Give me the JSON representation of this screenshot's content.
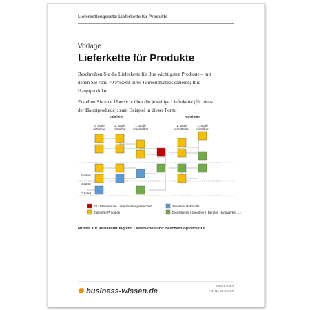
{
  "header": {
    "title": "Lieferkettengesetz: Lieferkette für Produkte"
  },
  "document": {
    "kicker": "Vorlage",
    "title": "Lieferkette für Produkte",
    "paragraphs": [
      "Beschreiben Sie die Lieferkette für Ihre wichtigsten Produkte – mit denen Sie rund 70 Prozent Ihres Jahresumsatzes erzielen; Ihre Hauptprodukte.",
      "Erstellen Sie eine Übersicht über die jeweilige Lieferkette (für eines der Hauptprodukte); zum Beispiel in dieser Form:"
    ]
  },
  "diagram": {
    "groups": [
      "Zulieferer",
      "Abnehmer"
    ],
    "columns": [
      [
        "3. Stufe",
        "mittelbar"
      ],
      [
        "2. Stufe",
        "mittelbar"
      ],
      [
        "1. Stufe",
        "unmittelbar"
      ],
      [
        "1. Stufe",
        "unmittelbar"
      ],
      [
        "2. Stufe",
        "mittelbar"
      ]
    ],
    "rows": [
      "A-Land",
      "B-Land",
      "C-Land"
    ],
    "legend": [
      "Ihr Unternehmen / Ihre Tochtergesellschaft",
      "Zulieferer Rohstoffe",
      "Zulieferer Produkte",
      "Dienstleister (Spediteure, Berater, Handwerker ...)"
    ],
    "caption": "Muster zur Visualisierung von Lieferketten und Beschaffungsstruktur"
  },
  "footer": {
    "brand": "business-wissen.de",
    "page": "Seite 1 von 4",
    "article": "Art.-Nr. 99.243.07"
  }
}
